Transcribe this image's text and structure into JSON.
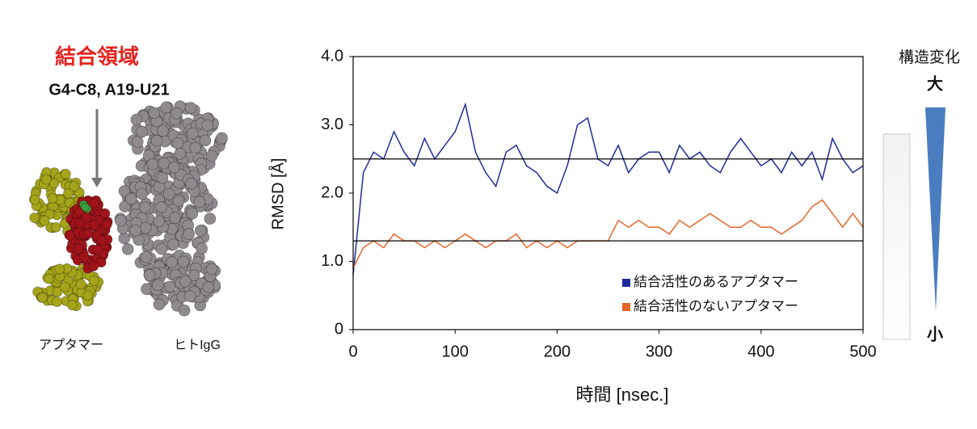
{
  "molecule_panel": {
    "title": "結合領域",
    "subtitle": "G4-C8, A19-U21",
    "labels": [
      "アプタマー",
      "ヒトIgG"
    ]
  },
  "scale_panel": {
    "title": "構造変化",
    "high": "大",
    "low": "小"
  },
  "chart_data": {
    "type": "line",
    "xlabel": "時間 [nsec.]",
    "ylabel": "RMSD [Å]",
    "x": [
      0,
      10,
      20,
      30,
      40,
      50,
      60,
      70,
      80,
      90,
      100,
      110,
      120,
      130,
      140,
      150,
      160,
      170,
      180,
      190,
      200,
      210,
      220,
      230,
      240,
      250,
      260,
      270,
      280,
      290,
      300,
      310,
      320,
      330,
      340,
      350,
      360,
      370,
      380,
      390,
      400,
      410,
      420,
      430,
      440,
      450,
      460,
      470,
      480,
      490,
      500
    ],
    "series": [
      {
        "name": "結合活性のあるアプタマー",
        "color": "#1f2b9c",
        "values": [
          0.8,
          2.3,
          2.6,
          2.5,
          2.9,
          2.6,
          2.4,
          2.8,
          2.5,
          2.7,
          2.9,
          3.3,
          2.6,
          2.3,
          2.1,
          2.6,
          2.7,
          2.4,
          2.3,
          2.1,
          2.0,
          2.4,
          3.0,
          3.1,
          2.5,
          2.4,
          2.7,
          2.3,
          2.5,
          2.6,
          2.6,
          2.3,
          2.7,
          2.5,
          2.6,
          2.4,
          2.3,
          2.6,
          2.8,
          2.6,
          2.4,
          2.5,
          2.3,
          2.6,
          2.4,
          2.6,
          2.2,
          2.8,
          2.5,
          2.3,
          2.4
        ]
      },
      {
        "name": "結合活性のないアプタマー",
        "color": "#e8652a",
        "values": [
          0.9,
          1.2,
          1.3,
          1.2,
          1.4,
          1.3,
          1.3,
          1.2,
          1.3,
          1.2,
          1.3,
          1.4,
          1.3,
          1.2,
          1.3,
          1.3,
          1.4,
          1.2,
          1.3,
          1.2,
          1.3,
          1.2,
          1.3,
          1.3,
          1.3,
          1.3,
          1.6,
          1.5,
          1.6,
          1.5,
          1.5,
          1.4,
          1.6,
          1.5,
          1.6,
          1.7,
          1.6,
          1.5,
          1.5,
          1.6,
          1.5,
          1.5,
          1.4,
          1.5,
          1.6,
          1.8,
          1.9,
          1.7,
          1.5,
          1.7,
          1.5
        ]
      }
    ],
    "reference_lines": [
      2.5,
      1.3
    ],
    "xlim": [
      0,
      500
    ],
    "xticks": [
      0,
      100,
      200,
      300,
      400,
      500
    ],
    "ylim": [
      0,
      4
    ],
    "yticks": [
      0,
      {
        "value": 1,
        "label": "1.0"
      },
      {
        "value": 2,
        "label": "2.0"
      },
      {
        "value": 3,
        "label": "3.0"
      },
      {
        "value": 4,
        "label": "4.0"
      }
    ],
    "legend": "bottom-right"
  }
}
